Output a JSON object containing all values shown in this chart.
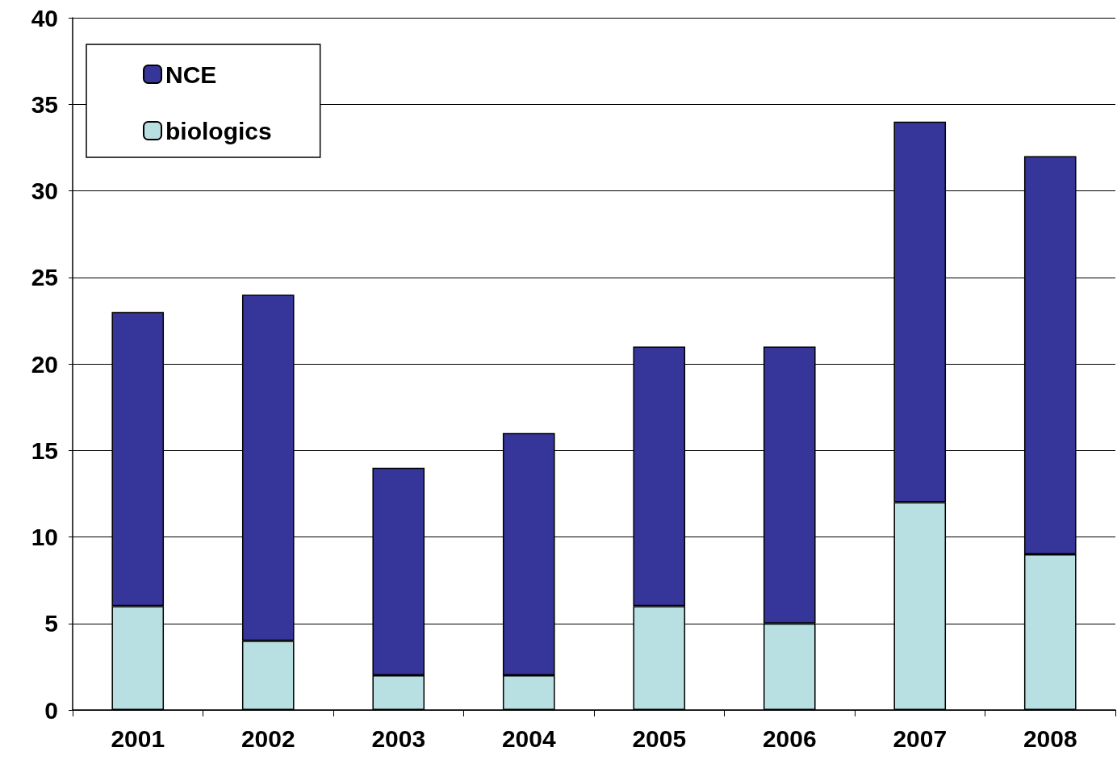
{
  "chart_data": {
    "type": "bar",
    "stacked": true,
    "categories": [
      "2001",
      "2002",
      "2003",
      "2004",
      "2005",
      "2006",
      "2007",
      "2008"
    ],
    "series": [
      {
        "name": "biologics",
        "color": "#b8e0e2",
        "values": [
          6,
          4,
          2,
          2,
          6,
          5,
          12,
          9
        ]
      },
      {
        "name": "NCE",
        "color": "#35359a",
        "values": [
          17,
          20,
          12,
          14,
          15,
          16,
          22,
          23
        ]
      }
    ],
    "ylim": [
      0,
      40
    ],
    "yticks": [
      0,
      5,
      10,
      15,
      20,
      25,
      30,
      35,
      40
    ],
    "grid": "y",
    "legend": "top left"
  }
}
